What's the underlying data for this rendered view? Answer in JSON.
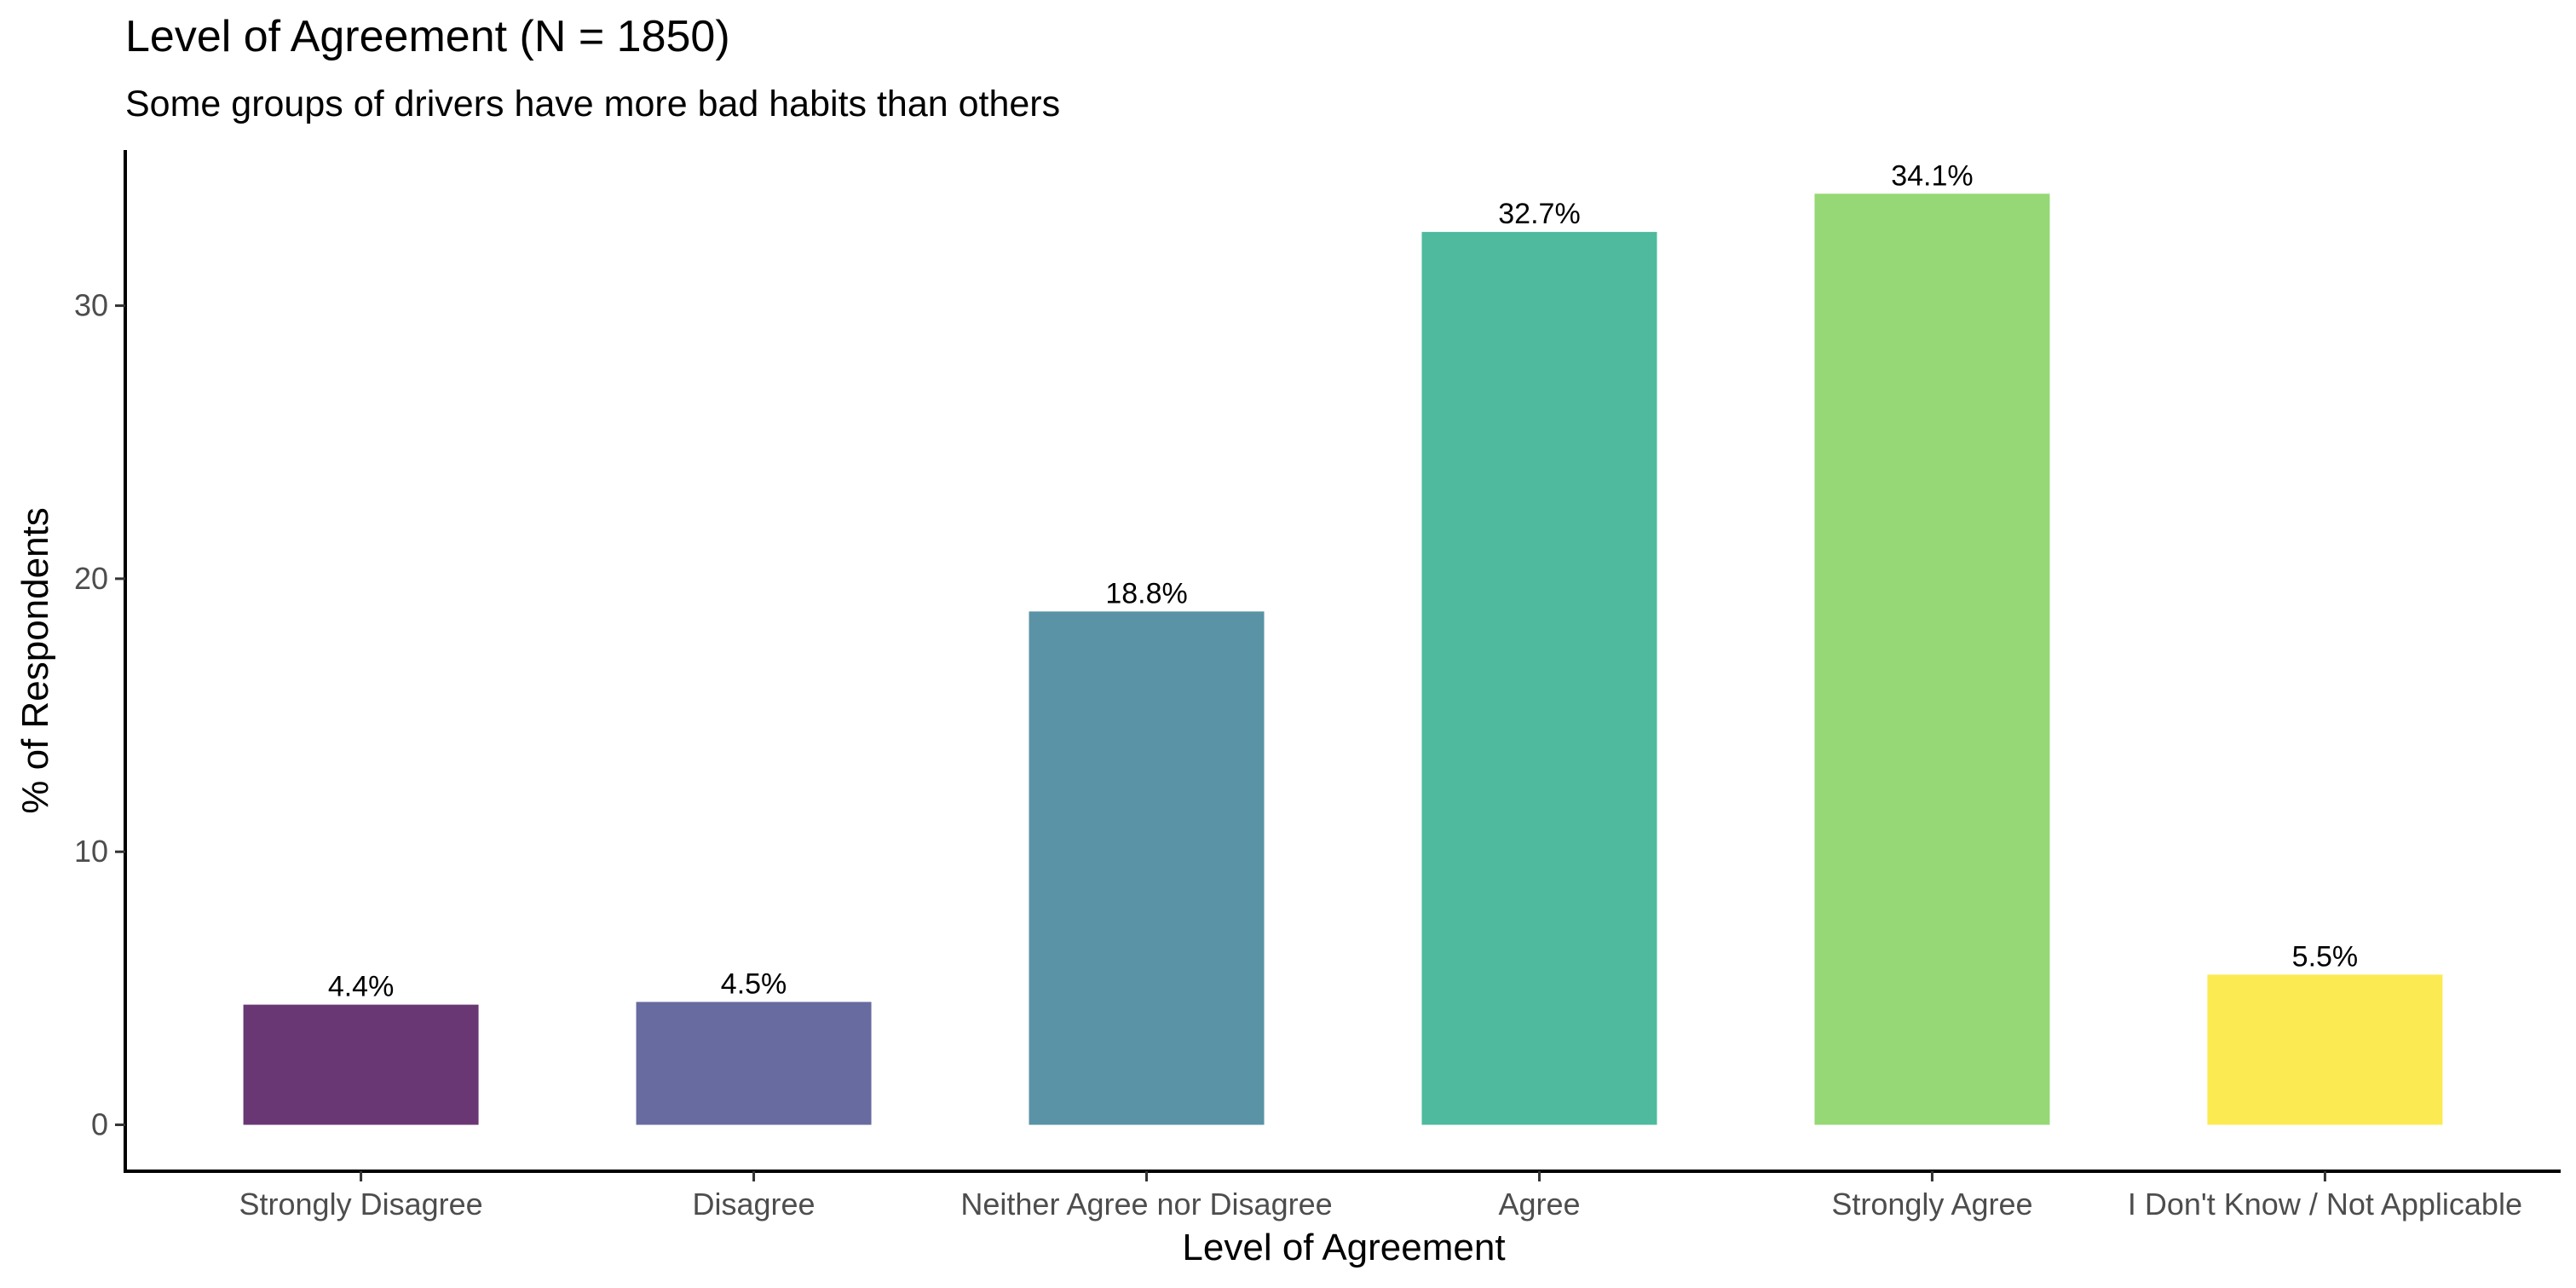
{
  "chart_data": {
    "type": "bar",
    "title": "Level of Agreement (N = 1850)",
    "subtitle": "Some groups of drivers have more bad habits than others",
    "xlabel": "Level of Agreement",
    "ylabel": "% of Respondents",
    "categories": [
      "Strongly Disagree",
      "Disagree",
      "Neither Agree nor Disagree",
      "Agree",
      "Strongly Agree",
      "I Don't Know / Not Applicable"
    ],
    "values": [
      4.4,
      4.5,
      18.8,
      32.7,
      34.1,
      5.5
    ],
    "data_labels": [
      "4.4%",
      "4.5%",
      "18.8%",
      "32.7%",
      "34.1%",
      "5.5%"
    ],
    "colors": [
      "#693774",
      "#686ba0",
      "#5993a5",
      "#4fba9e",
      "#95d875",
      "#fcea52"
    ],
    "y_ticks": [
      0,
      10,
      20,
      30
    ],
    "ylim": [
      -1.7,
      35.7
    ],
    "grid": false,
    "legend": "none"
  }
}
